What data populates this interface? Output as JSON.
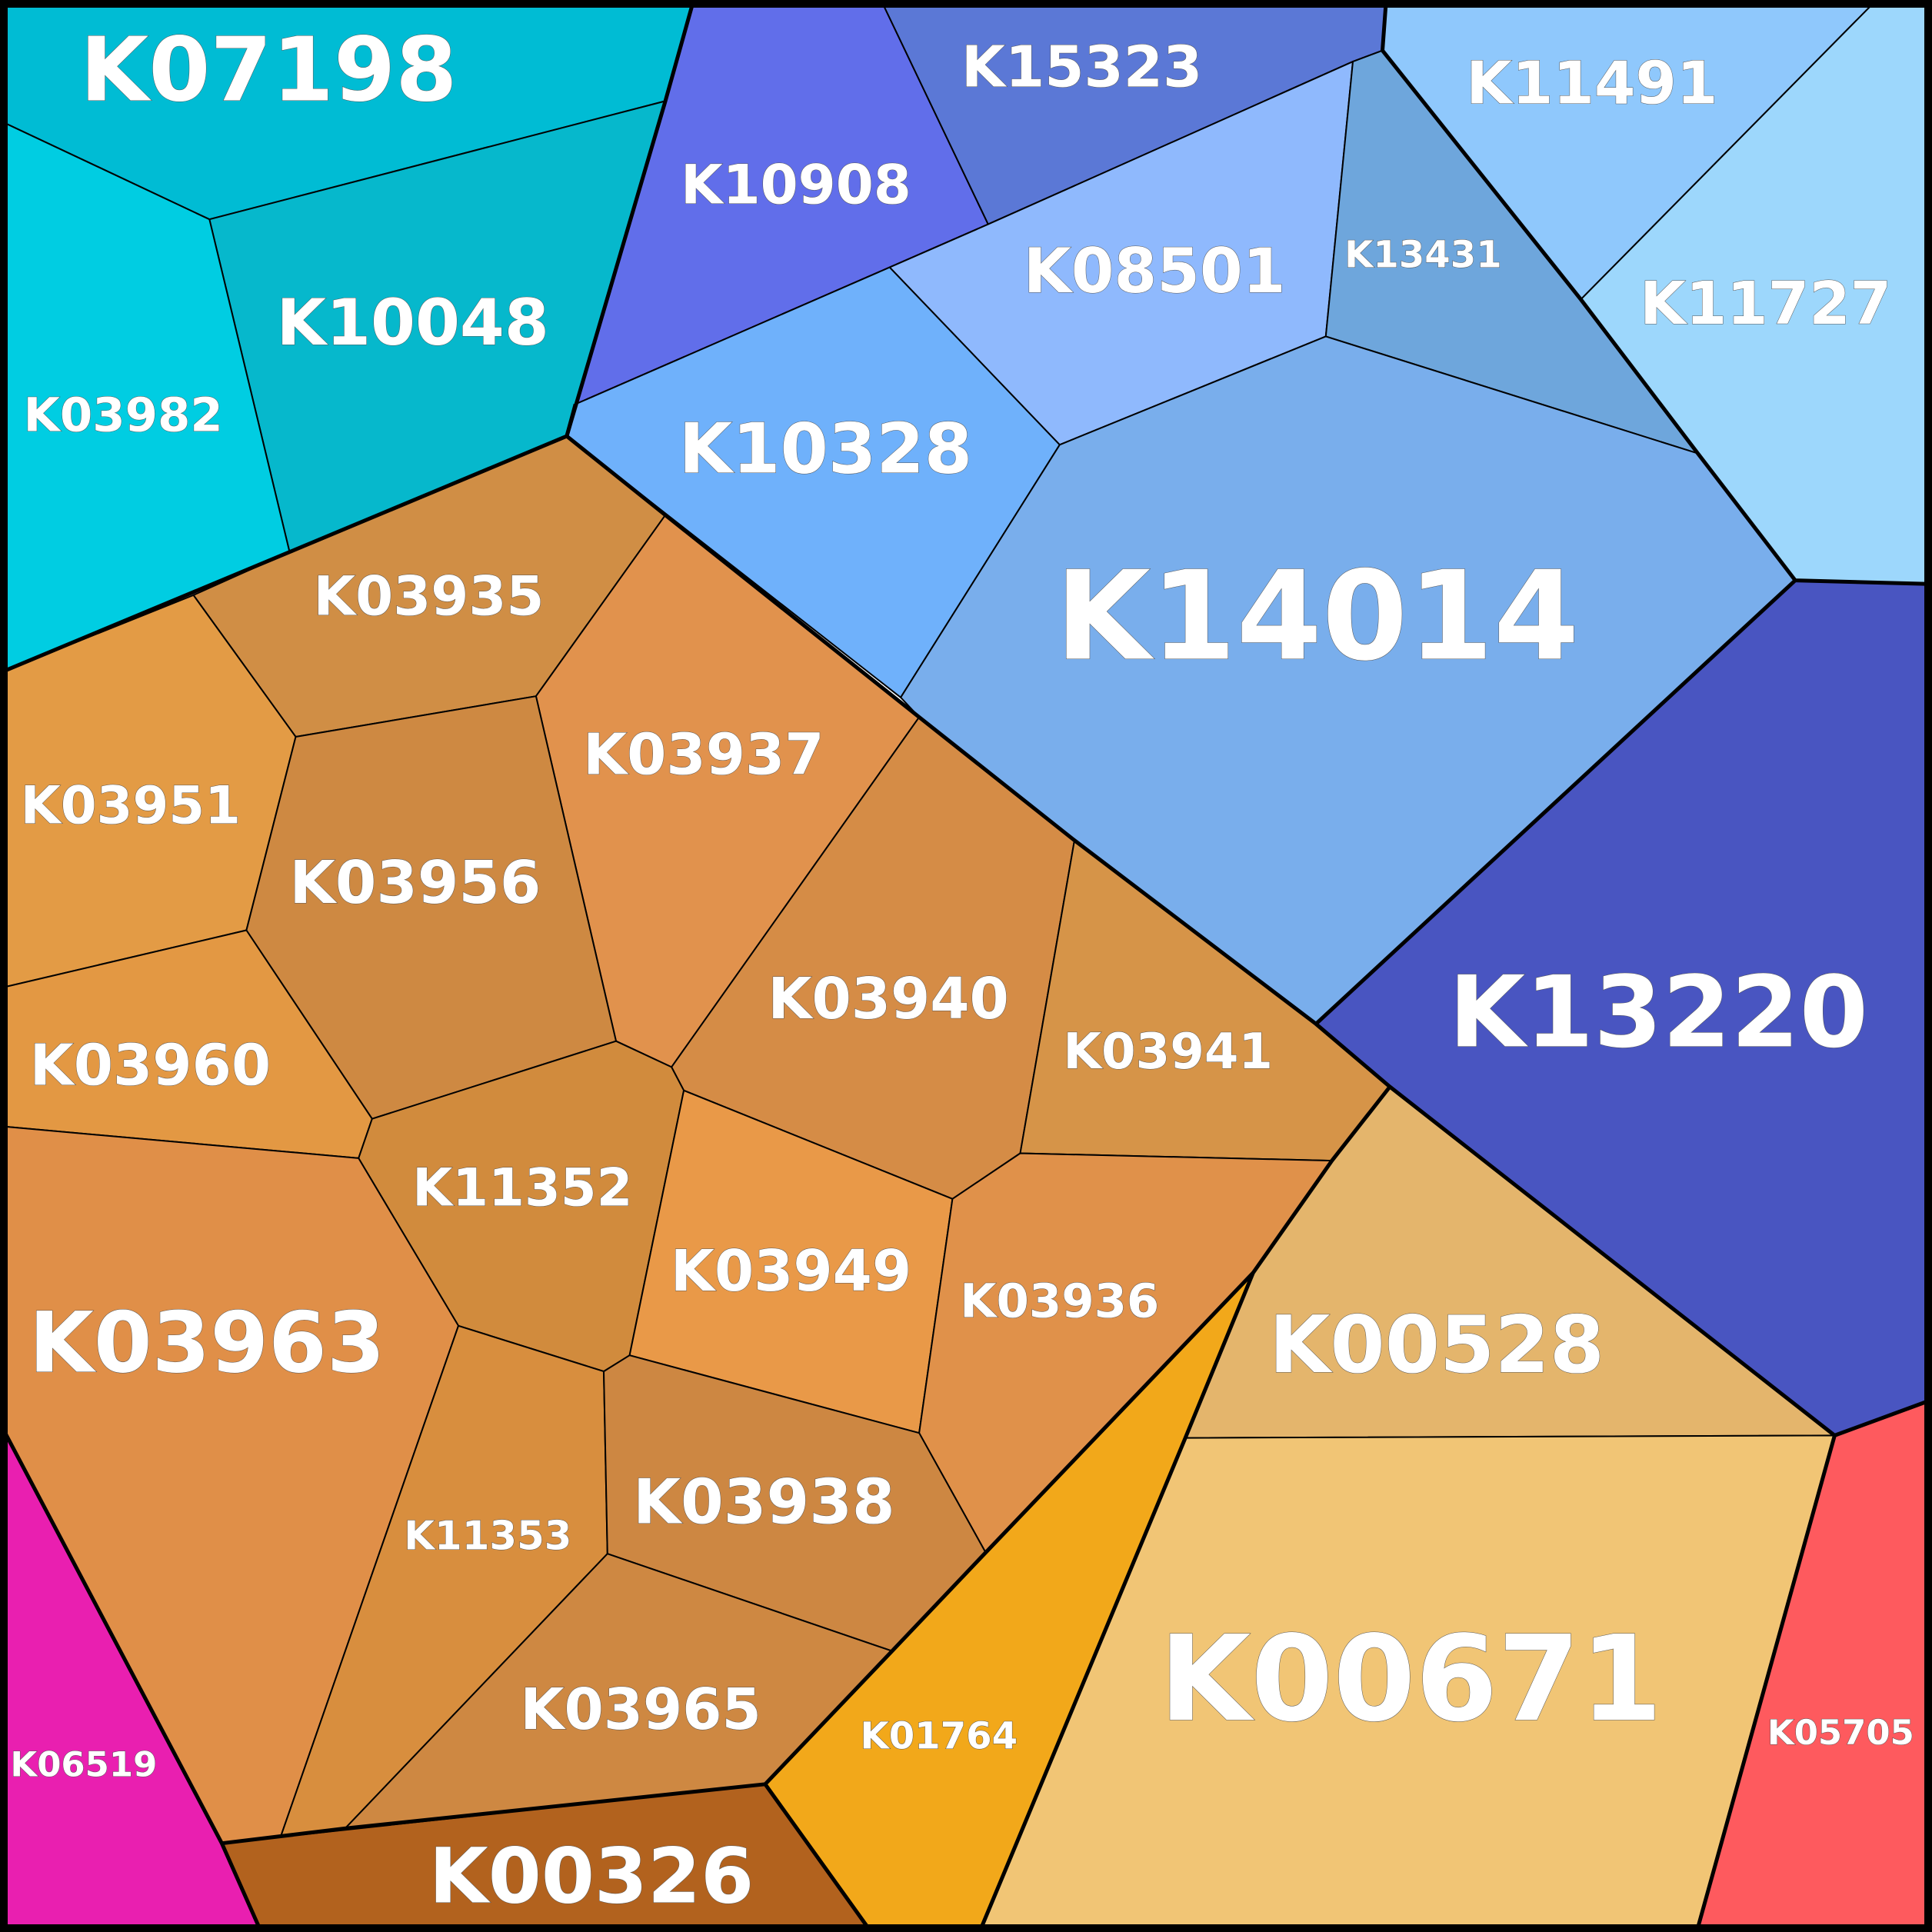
{
  "chart_data": {
    "type": "voronoi-treemap",
    "title": "",
    "groups": [
      {
        "color": "#0bb8cc",
        "cells": [
          {
            "id": "K07198",
            "color": "#00bcd4"
          },
          {
            "id": "K10048",
            "color": "#06b8cc"
          },
          {
            "id": "K03982",
            "color": "#00cde2"
          }
        ]
      },
      {
        "color": "#6f9fe8",
        "cells": [
          {
            "id": "K10908",
            "color": "#616eea"
          },
          {
            "id": "K15323",
            "color": "#5b78d6"
          },
          {
            "id": "K08501",
            "color": "#8fb9fd"
          },
          {
            "id": "K13431",
            "color": "#6ea6dc"
          },
          {
            "id": "K11491",
            "color": "#8fc8fc"
          },
          {
            "id": "K11727",
            "color": "#9dd7fc"
          },
          {
            "id": "K10328",
            "color": "#6fb1fb"
          },
          {
            "id": "K14014",
            "color": "#79aeec"
          },
          {
            "id": "K13220",
            "color": "#4955c1"
          }
        ]
      },
      {
        "color": "#d58c44",
        "cells": [
          {
            "id": "K03935",
            "color": "#d08e45"
          },
          {
            "id": "K03937",
            "color": "#e1924d"
          },
          {
            "id": "K03951",
            "color": "#e39b45"
          },
          {
            "id": "K03956",
            "color": "#ce8942"
          },
          {
            "id": "K03960",
            "color": "#e39843"
          },
          {
            "id": "K03940",
            "color": "#d58c46"
          },
          {
            "id": "K03941",
            "color": "#d69448"
          },
          {
            "id": "K11352",
            "color": "#d18b3d"
          },
          {
            "id": "K03949",
            "color": "#e99948"
          },
          {
            "id": "K03936",
            "color": "#e0914a"
          },
          {
            "id": "K03963",
            "color": "#e08f48"
          },
          {
            "id": "K11353",
            "color": "#d88e3e"
          },
          {
            "id": "K03938",
            "color": "#cd8742"
          },
          {
            "id": "K03965",
            "color": "#ce8842"
          }
        ]
      },
      {
        "color": "#ebbd6c",
        "cells": [
          {
            "id": "K00528",
            "color": "#e4b56c"
          },
          {
            "id": "K00671",
            "color": "#f1c575"
          }
        ]
      },
      {
        "color": "#e91fb0",
        "cells": [
          {
            "id": "K06519",
            "color": "#e91fb0"
          }
        ]
      },
      {
        "color": "#b2621e",
        "cells": [
          {
            "id": "K00326",
            "color": "#b2621e"
          }
        ]
      },
      {
        "color": "#f2a81a",
        "cells": [
          {
            "id": "K01764",
            "color": "#f2a81a"
          }
        ]
      },
      {
        "color": "#fe5a5e",
        "cells": [
          {
            "id": "K05705",
            "color": "#fe5a5e"
          }
        ]
      }
    ]
  }
}
